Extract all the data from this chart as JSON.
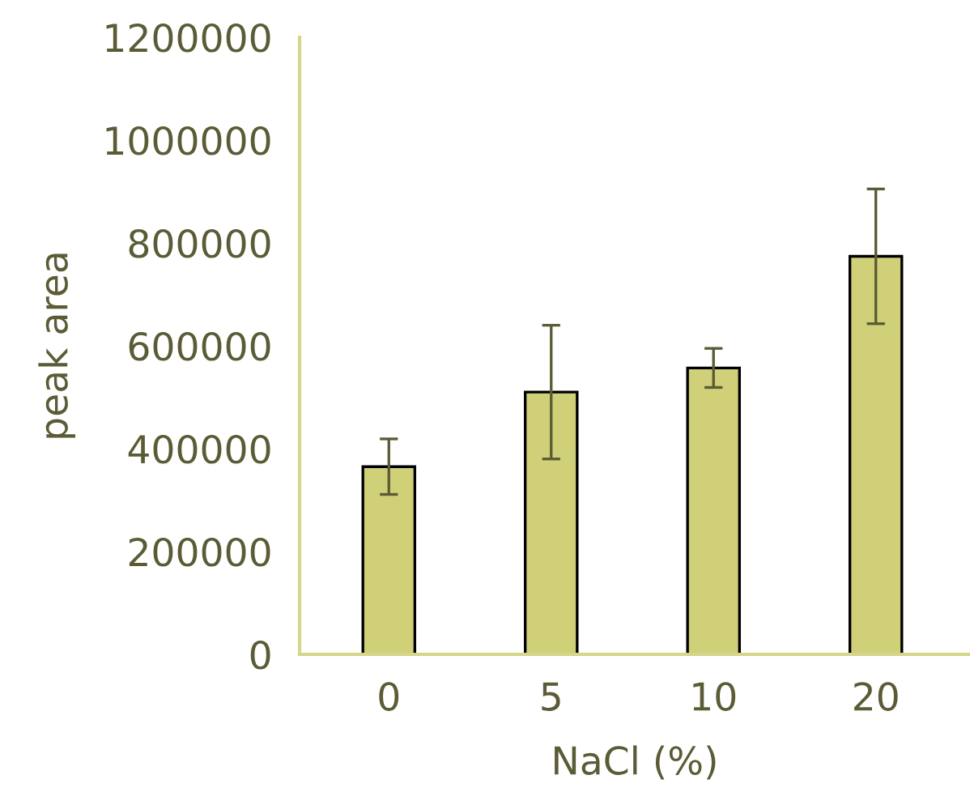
{
  "chart_data": {
    "type": "bar",
    "xlabel": "NaCl (%)",
    "ylabel": "peak area",
    "categories": [
      "0",
      "5",
      "10",
      "20"
    ],
    "series": [
      {
        "color": "#cfd078",
        "values": [
          365000,
          510000,
          557000,
          774000
        ],
        "errors": [
          54000,
          130000,
          38000,
          131000
        ]
      }
    ],
    "ylim": [
      0,
      1200000
    ],
    "yticks": [
      0,
      200000,
      400000,
      600000,
      800000,
      1000000,
      1200000
    ],
    "grid": false,
    "legend": false
  }
}
